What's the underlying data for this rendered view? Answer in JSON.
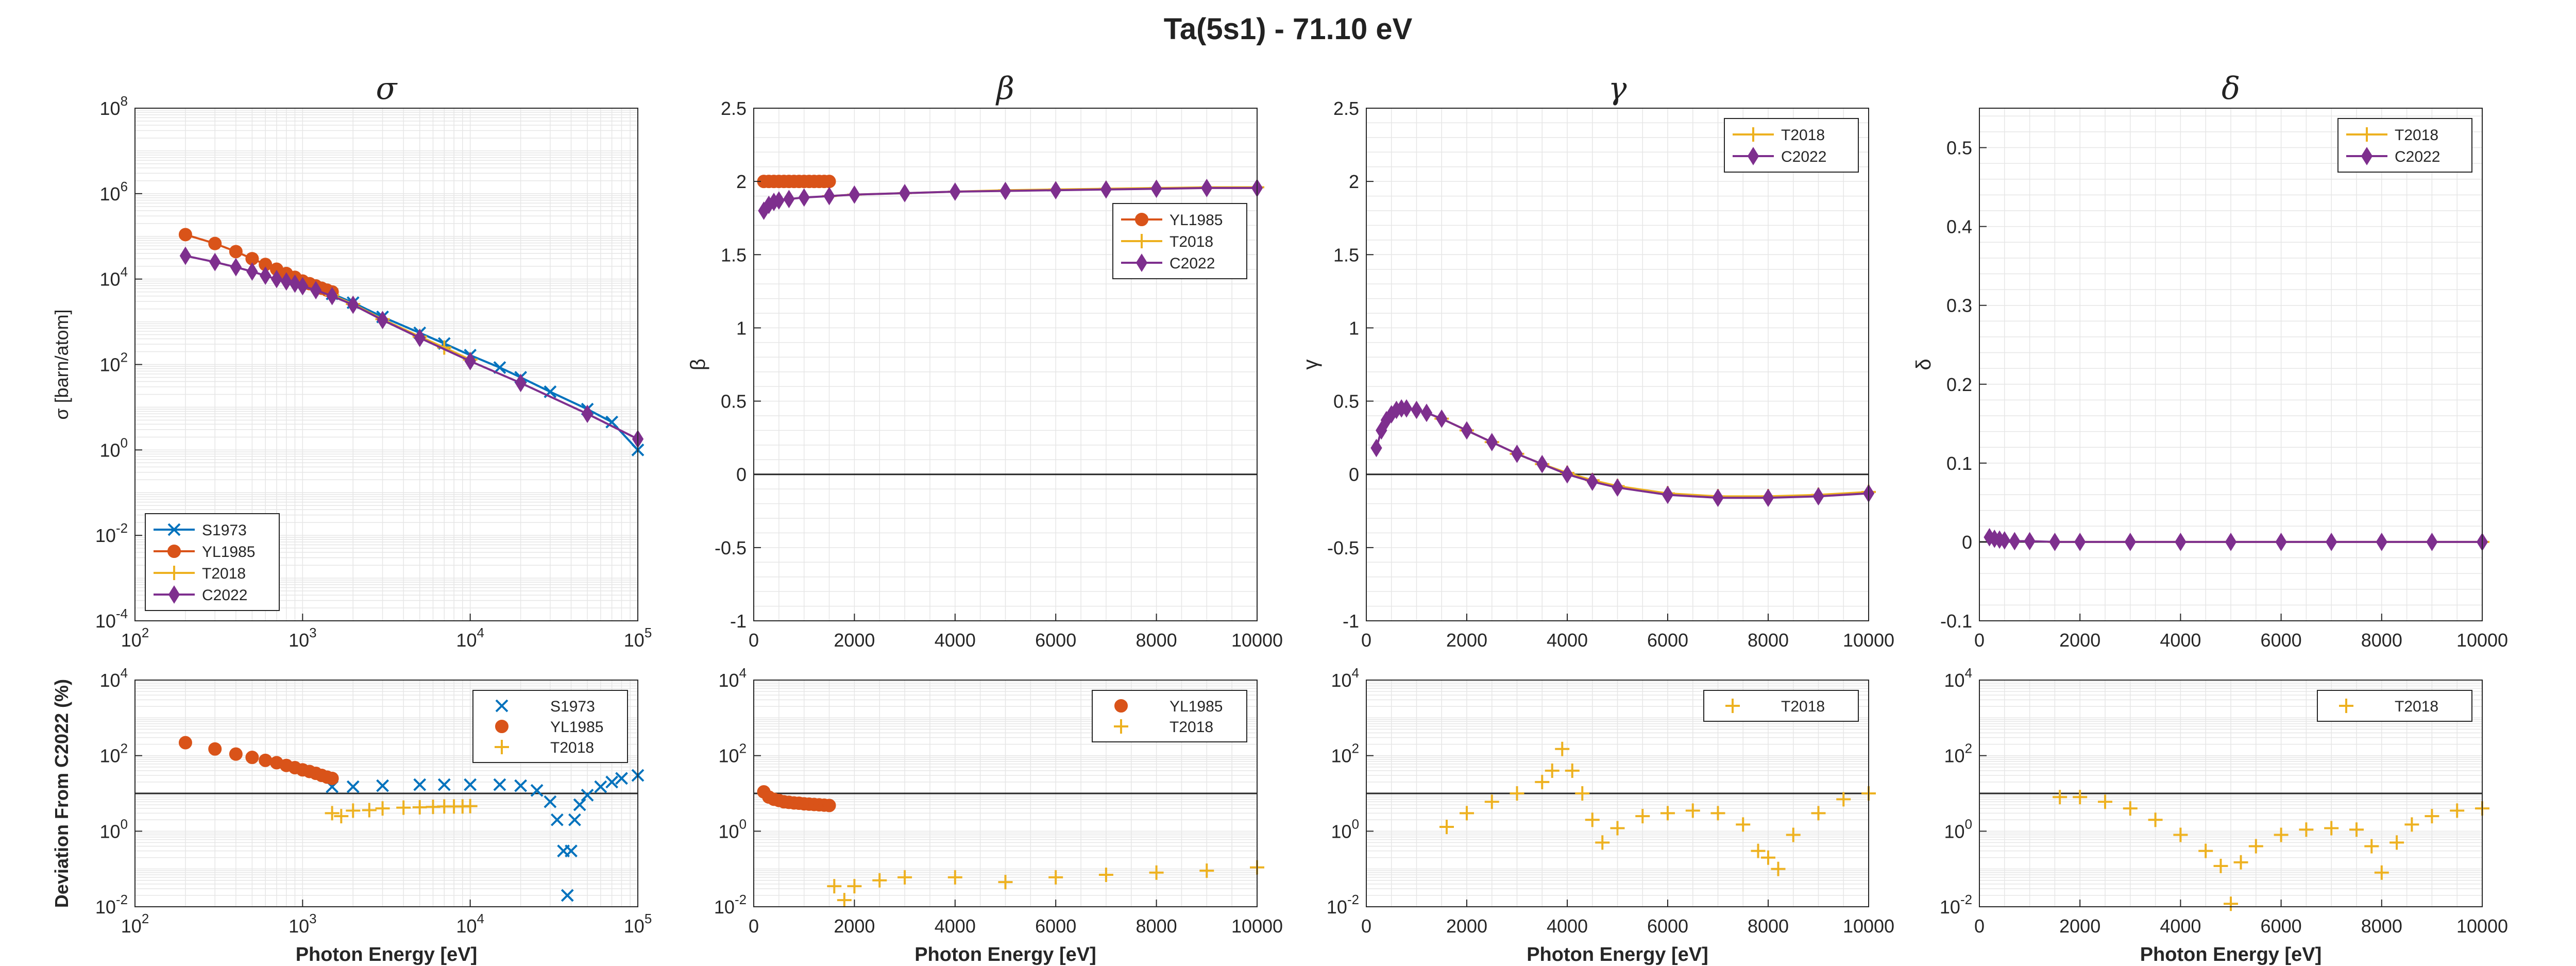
{
  "title": "Ta(5s1) - 71.10 eV",
  "colors": {
    "S1973": "#0072BD",
    "YL1985": "#D95319",
    "T2018": "#EDB120",
    "C2022": "#7E2F8E"
  },
  "chart_data": [
    {
      "id": "sigma",
      "type": "line",
      "title": "σ",
      "ylabel": "σ [barn/atom]",
      "xlabel": "",
      "xscale": "log",
      "yscale": "log",
      "xlim": [
        100,
        100000
      ],
      "ylim": [
        0.0001,
        100000000
      ],
      "xticks": [
        100,
        1000,
        10000,
        100000
      ],
      "xtick_labels": [
        "10^2",
        "10^3",
        "10^4",
        "10^5"
      ],
      "yticks": [
        0.0001,
        0.01,
        1,
        100,
        10000,
        1000000,
        100000000
      ],
      "ytick_labels": [
        "10^-4",
        "10^-2",
        "10^0",
        "10^2",
        "10^4",
        "10^6",
        "10^8"
      ],
      "grid": true,
      "legend": "bottom-left",
      "series": [
        {
          "name": "S1973",
          "color": "#0072BD",
          "marker": "x",
          "x": [
            1500,
            2000,
            3000,
            5000,
            7000,
            10000,
            15000,
            20000,
            30000,
            50000,
            70000,
            100000
          ],
          "y": [
            4500,
            2800,
            1300,
            550,
            310,
            165,
            85,
            50,
            23,
            9,
            4.5,
            1.0
          ]
        },
        {
          "name": "YL1985",
          "color": "#D95319",
          "marker": "o",
          "x": [
            200,
            300,
            400,
            500,
            600,
            700,
            800,
            900,
            1000,
            1100,
            1200,
            1300,
            1400,
            1500
          ],
          "y": [
            110000,
            68000,
            44000,
            30000,
            22000,
            17000,
            13500,
            11000,
            9000,
            7800,
            6900,
            6100,
            5500,
            5000
          ]
        },
        {
          "name": "T2018",
          "color": "#EDB120",
          "marker": "+",
          "x": [
            1500,
            2000,
            3000,
            5000,
            7000,
            10000
          ],
          "y": [
            4200,
            2600,
            1150,
            450,
            250,
            130
          ]
        },
        {
          "name": "C2022",
          "color": "#7E2F8E",
          "marker": "d",
          "x": [
            200,
            300,
            400,
            500,
            600,
            700,
            800,
            900,
            1000,
            1200,
            1500,
            2000,
            3000,
            5000,
            10000,
            20000,
            50000,
            100000
          ],
          "y": [
            35000,
            25000,
            19000,
            15000,
            12000,
            10000,
            8800,
            7800,
            6800,
            5500,
            4000,
            2500,
            1100,
            420,
            120,
            37,
            7,
            1.8
          ]
        }
      ]
    },
    {
      "id": "beta",
      "type": "line",
      "title": "β",
      "ylabel": "β",
      "xlabel": "",
      "xscale": "linear",
      "yscale": "linear",
      "xlim": [
        0,
        10000
      ],
      "ylim": [
        -1,
        2.5
      ],
      "xticks": [
        0,
        2000,
        4000,
        6000,
        8000,
        10000
      ],
      "xtick_labels": [
        "0",
        "2000",
        "4000",
        "6000",
        "8000",
        "10000"
      ],
      "yticks": [
        -1,
        -0.5,
        0,
        0.5,
        1,
        1.5,
        2,
        2.5
      ],
      "ytick_labels": [
        "-1",
        "-0.5",
        "0",
        "0.5",
        "1",
        "1.5",
        "2",
        "2.5"
      ],
      "zero_line": 0,
      "grid": true,
      "legend": "top-right",
      "series": [
        {
          "name": "YL1985",
          "color": "#D95319",
          "marker": "o",
          "x": [
            200,
            300,
            400,
            500,
            600,
            700,
            800,
            900,
            1000,
            1100,
            1200,
            1300,
            1400,
            1500
          ],
          "y": [
            2,
            2,
            2,
            2,
            2,
            2,
            2,
            2,
            2,
            2,
            2,
            2,
            2,
            2
          ]
        },
        {
          "name": "T2018",
          "color": "#EDB120",
          "marker": "+",
          "x": [
            1500,
            2000,
            3000,
            4000,
            5000,
            6000,
            7000,
            8000,
            9000,
            10000
          ],
          "y": [
            1.9,
            1.91,
            1.92,
            1.93,
            1.94,
            1.945,
            1.95,
            1.955,
            1.96,
            1.96
          ]
        },
        {
          "name": "C2022",
          "color": "#7E2F8E",
          "marker": "d",
          "x": [
            200,
            300,
            400,
            500,
            700,
            1000,
            1500,
            2000,
            3000,
            4000,
            5000,
            6000,
            7000,
            8000,
            9000,
            10000
          ],
          "y": [
            1.8,
            1.84,
            1.86,
            1.87,
            1.88,
            1.89,
            1.9,
            1.91,
            1.92,
            1.93,
            1.935,
            1.94,
            1.945,
            1.95,
            1.955,
            1.955
          ]
        }
      ]
    },
    {
      "id": "gamma",
      "type": "line",
      "title": "γ",
      "ylabel": "γ",
      "xlabel": "",
      "xscale": "linear",
      "yscale": "linear",
      "xlim": [
        0,
        10000
      ],
      "ylim": [
        -1,
        2.5
      ],
      "xticks": [
        0,
        2000,
        4000,
        6000,
        8000,
        10000
      ],
      "xtick_labels": [
        "0",
        "2000",
        "4000",
        "6000",
        "8000",
        "10000"
      ],
      "yticks": [
        -1,
        -0.5,
        0,
        0.5,
        1,
        1.5,
        2,
        2.5
      ],
      "ytick_labels": [
        "-1",
        "-0.5",
        "0",
        "0.5",
        "1",
        "1.5",
        "2",
        "2.5"
      ],
      "zero_line": 0,
      "grid": true,
      "legend": "top-right",
      "series": [
        {
          "name": "T2018",
          "color": "#EDB120",
          "marker": "+",
          "x": [
            1500,
            2000,
            2500,
            3000,
            3500,
            4000,
            4500,
            5000,
            6000,
            7000,
            8000,
            9000,
            10000
          ],
          "y": [
            0.38,
            0.3,
            0.22,
            0.14,
            0.07,
            0.01,
            -0.04,
            -0.08,
            -0.13,
            -0.15,
            -0.15,
            -0.14,
            -0.12
          ]
        },
        {
          "name": "C2022",
          "color": "#7E2F8E",
          "marker": "d",
          "x": [
            200,
            300,
            400,
            500,
            600,
            700,
            800,
            1000,
            1200,
            1500,
            2000,
            2500,
            3000,
            3500,
            4000,
            4500,
            5000,
            6000,
            7000,
            8000,
            9000,
            10000
          ],
          "y": [
            0.18,
            0.3,
            0.37,
            0.41,
            0.44,
            0.45,
            0.45,
            0.44,
            0.42,
            0.38,
            0.3,
            0.22,
            0.14,
            0.07,
            0.0,
            -0.05,
            -0.09,
            -0.14,
            -0.16,
            -0.16,
            -0.15,
            -0.13
          ]
        }
      ]
    },
    {
      "id": "delta",
      "type": "line",
      "title": "δ",
      "ylabel": "δ",
      "xlabel": "",
      "xscale": "linear",
      "yscale": "linear",
      "xlim": [
        0,
        10000
      ],
      "ylim": [
        -0.1,
        0.55
      ],
      "xticks": [
        0,
        2000,
        4000,
        6000,
        8000,
        10000
      ],
      "xtick_labels": [
        "0",
        "2000",
        "4000",
        "6000",
        "8000",
        "10000"
      ],
      "yticks": [
        -0.1,
        0,
        0.1,
        0.2,
        0.3,
        0.4,
        0.5
      ],
      "ytick_labels": [
        "-0.1",
        "0",
        "0.1",
        "0.2",
        "0.3",
        "0.4",
        "0.5"
      ],
      "zero_line": 0,
      "grid": true,
      "legend": "top-right",
      "series": [
        {
          "name": "T2018",
          "color": "#EDB120",
          "marker": "+",
          "x": [
            1500,
            2000,
            3000,
            4000,
            5000,
            6000,
            7000,
            8000,
            9000,
            10000
          ],
          "y": [
            0,
            0,
            0,
            0,
            0,
            0,
            0,
            0,
            0,
            0
          ]
        },
        {
          "name": "C2022",
          "color": "#7E2F8E",
          "marker": "d",
          "x": [
            200,
            300,
            400,
            500,
            700,
            1000,
            1500,
            2000,
            3000,
            4000,
            5000,
            6000,
            7000,
            8000,
            9000,
            10000
          ],
          "y": [
            0.006,
            0.004,
            0.003,
            0.002,
            0.001,
            0.001,
            0,
            0,
            0,
            0,
            0,
            0,
            0,
            0,
            0,
            0
          ]
        }
      ]
    },
    {
      "id": "dev-sigma",
      "type": "scatter",
      "title": "",
      "ylabel": "Deviation From C2022 (%)",
      "xlabel": "Photon Energy [eV]",
      "xscale": "log",
      "yscale": "log",
      "xlim": [
        100,
        100000
      ],
      "ylim": [
        0.01,
        10000
      ],
      "xticks": [
        100,
        1000,
        10000,
        100000
      ],
      "xtick_labels": [
        "10^2",
        "10^3",
        "10^4",
        "10^5"
      ],
      "yticks": [
        0.01,
        1,
        100,
        10000
      ],
      "ytick_labels": [
        "10^-2",
        "10^0",
        "10^2",
        "10^4"
      ],
      "ref_line": 10,
      "grid": true,
      "legend": "top-right",
      "series": [
        {
          "name": "S1973",
          "color": "#0072BD",
          "marker": "x",
          "x": [
            1500,
            2000,
            3000,
            5000,
            7000,
            10000,
            15000,
            20000,
            25000,
            30000,
            33000,
            36000,
            38000,
            40000,
            42000,
            45000,
            50000,
            60000,
            70000,
            80000,
            100000
          ],
          "y": [
            15,
            15,
            16,
            17,
            17,
            17,
            17,
            16,
            12,
            6,
            2,
            0.3,
            0.02,
            0.3,
            2,
            5,
            9,
            15,
            20,
            25,
            30
          ]
        },
        {
          "name": "YL1985",
          "color": "#D95319",
          "marker": "o",
          "x": [
            200,
            300,
            400,
            500,
            600,
            700,
            800,
            900,
            1000,
            1100,
            1200,
            1300,
            1400,
            1500
          ],
          "y": [
            220,
            150,
            110,
            90,
            75,
            65,
            55,
            48,
            42,
            38,
            34,
            30,
            27,
            25
          ]
        },
        {
          "name": "T2018",
          "color": "#EDB120",
          "marker": "+",
          "x": [
            1500,
            1700,
            2000,
            2500,
            3000,
            4000,
            5000,
            6000,
            7000,
            8000,
            9000,
            10000
          ],
          "y": [
            3,
            2.5,
            3.5,
            3.6,
            4,
            4.2,
            4.3,
            4.4,
            4.5,
            4.5,
            4.5,
            4.6
          ]
        }
      ]
    },
    {
      "id": "dev-beta",
      "type": "scatter",
      "title": "",
      "ylabel": "",
      "xlabel": "Photon Energy [eV]",
      "xscale": "linear",
      "yscale": "log",
      "xlim": [
        0,
        10000
      ],
      "ylim": [
        0.01,
        10000
      ],
      "xticks": [
        0,
        2000,
        4000,
        6000,
        8000,
        10000
      ],
      "xtick_labels": [
        "0",
        "2000",
        "4000",
        "6000",
        "8000",
        "10000"
      ],
      "yticks": [
        0.01,
        1,
        100,
        10000
      ],
      "ytick_labels": [
        "10^-2",
        "10^0",
        "10^2",
        "10^4"
      ],
      "ref_line": 10,
      "grid": true,
      "legend": "top-right",
      "series": [
        {
          "name": "YL1985",
          "color": "#D95319",
          "marker": "o",
          "x": [
            200,
            300,
            400,
            500,
            600,
            700,
            800,
            900,
            1000,
            1100,
            1200,
            1300,
            1400,
            1500
          ],
          "y": [
            11,
            8,
            7,
            6.5,
            6,
            5.8,
            5.6,
            5.5,
            5.3,
            5.2,
            5.1,
            5.0,
            4.9,
            4.8
          ]
        },
        {
          "name": "T2018",
          "color": "#EDB120",
          "marker": "+",
          "x": [
            1600,
            1800,
            2000,
            2500,
            3000,
            4000,
            5000,
            6000,
            7000,
            8000,
            9000,
            10000
          ],
          "y": [
            0.035,
            0.015,
            0.035,
            0.05,
            0.06,
            0.06,
            0.045,
            0.06,
            0.07,
            0.08,
            0.09,
            0.11
          ]
        }
      ]
    },
    {
      "id": "dev-gamma",
      "type": "scatter",
      "title": "",
      "ylabel": "",
      "xlabel": "Photon Energy [eV]",
      "xscale": "linear",
      "yscale": "log",
      "xlim": [
        0,
        10000
      ],
      "ylim": [
        0.01,
        10000
      ],
      "xticks": [
        0,
        2000,
        4000,
        6000,
        8000,
        10000
      ],
      "xtick_labels": [
        "0",
        "2000",
        "4000",
        "6000",
        "8000",
        "10000"
      ],
      "yticks": [
        0.01,
        1,
        100,
        10000
      ],
      "ytick_labels": [
        "10^-2",
        "10^0",
        "10^2",
        "10^4"
      ],
      "ref_line": 10,
      "grid": true,
      "legend": "top-right",
      "series": [
        {
          "name": "T2018",
          "color": "#EDB120",
          "marker": "+",
          "x": [
            1600,
            2000,
            2500,
            3000,
            3500,
            3700,
            3900,
            4100,
            4300,
            4500,
            4700,
            5000,
            5500,
            6000,
            6500,
            7000,
            7500,
            7800,
            8000,
            8200,
            8500,
            9000,
            9500,
            10000
          ],
          "y": [
            1.3,
            3,
            6,
            10,
            20,
            40,
            150,
            40,
            10,
            2,
            0.5,
            1.2,
            2.5,
            3,
            3.5,
            3,
            1.5,
            0.3,
            0.2,
            0.1,
            0.8,
            3,
            7,
            10
          ]
        }
      ]
    },
    {
      "id": "dev-delta",
      "type": "scatter",
      "title": "",
      "ylabel": "",
      "xlabel": "Photon Energy [eV]",
      "xscale": "linear",
      "yscale": "log",
      "xlim": [
        0,
        10000
      ],
      "ylim": [
        0.01,
        10000
      ],
      "xticks": [
        0,
        2000,
        4000,
        6000,
        8000,
        10000
      ],
      "xtick_labels": [
        "0",
        "2000",
        "4000",
        "6000",
        "8000",
        "10000"
      ],
      "yticks": [
        0.01,
        1,
        100,
        10000
      ],
      "ytick_labels": [
        "10^-2",
        "10^0",
        "10^2",
        "10^4"
      ],
      "ref_line": 10,
      "grid": true,
      "legend": "top-right",
      "series": [
        {
          "name": "T2018",
          "color": "#EDB120",
          "marker": "+",
          "x": [
            1600,
            2000,
            2500,
            3000,
            3500,
            4000,
            4500,
            4800,
            5000,
            5200,
            5500,
            6000,
            6500,
            7000,
            7500,
            7800,
            8000,
            8300,
            8600,
            9000,
            9500,
            10000
          ],
          "y": [
            8,
            8,
            6,
            4,
            2,
            0.8,
            0.3,
            0.12,
            0.012,
            0.15,
            0.4,
            0.8,
            1.1,
            1.2,
            1.1,
            0.4,
            0.08,
            0.5,
            1.5,
            2.5,
            3.5,
            4
          ]
        }
      ]
    }
  ]
}
